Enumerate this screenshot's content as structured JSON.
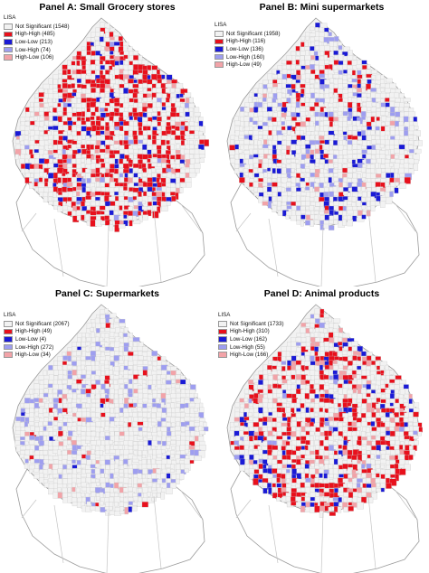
{
  "legend_title": "LISA",
  "colors": {
    "not_significant": "#f2f2f2",
    "high_high": "#e8101c",
    "low_low": "#1a1ad6",
    "low_high": "#9e9ef0",
    "high_low": "#f2a3a8",
    "boundary": "#9a9a9a",
    "grid": "#c8c8c8"
  },
  "panels": [
    {
      "title": "Panel A: Small  Grocery stores",
      "legend": [
        {
          "label": "Not Significant (1548)",
          "class": "not_significant"
        },
        {
          "label": "High-High (485)",
          "class": "high_high"
        },
        {
          "label": "Low-Low (213)",
          "class": "low_low"
        },
        {
          "label": "Low-High (74)",
          "class": "low_high"
        },
        {
          "label": "High-Low (106)",
          "class": "high_low"
        }
      ]
    },
    {
      "title": "Panel B:  Mini supermarkets",
      "legend": [
        {
          "label": "Not Significant (1958)",
          "class": "not_significant"
        },
        {
          "label": "High-High (116)",
          "class": "high_high"
        },
        {
          "label": "Low-Low (136)",
          "class": "low_low"
        },
        {
          "label": "Low-High (160)",
          "class": "low_high"
        },
        {
          "label": "High-Low (49)",
          "class": "high_low"
        }
      ]
    },
    {
      "title": "Panel C: Supermarkets",
      "legend": [
        {
          "label": "Not Significant (2067)",
          "class": "not_significant"
        },
        {
          "label": "High-High (49)",
          "class": "high_high"
        },
        {
          "label": "Low-Low (4)",
          "class": "low_low"
        },
        {
          "label": "Low-High (272)",
          "class": "low_high"
        },
        {
          "label": "High-Low (34)",
          "class": "high_low"
        }
      ]
    },
    {
      "title": "Panel D: Animal products",
      "legend": [
        {
          "label": "Not Significant (1733)",
          "class": "not_significant"
        },
        {
          "label": "High-High (310)",
          "class": "high_high"
        },
        {
          "label": "Low-Low (162)",
          "class": "low_low"
        },
        {
          "label": "Low-High (55)",
          "class": "low_high"
        },
        {
          "label": "High-Low (166)",
          "class": "high_low"
        }
      ]
    }
  ]
}
